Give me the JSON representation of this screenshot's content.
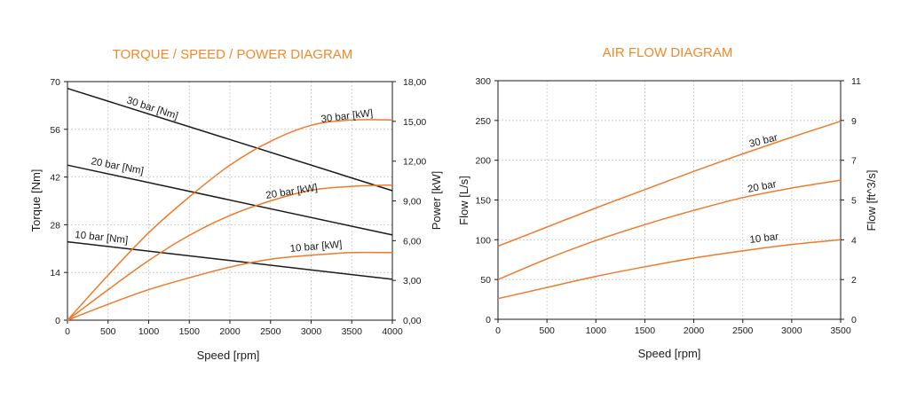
{
  "chart_data": [
    {
      "type": "line",
      "title": "TORQUE / SPEED / POWER DIAGRAM",
      "xlabel": "Speed [rpm]",
      "ylabel": "Torque [Nm]",
      "y2label": "Power [kW]",
      "xlim": [
        0,
        4000
      ],
      "ylim": [
        0,
        70
      ],
      "y2lim": [
        0,
        18
      ],
      "xticks": [
        "0",
        "500",
        "1000",
        "1500",
        "2000",
        "2500",
        "3000",
        "3500",
        "4000"
      ],
      "yticks": [
        "0",
        "14",
        "28",
        "42",
        "56",
        "70"
      ],
      "y2ticks": [
        "0,00",
        "3,00",
        "6,00",
        "9,00",
        "12,00",
        "15,00",
        "18,00"
      ],
      "grid": true,
      "series": [
        {
          "name": "30 bar [Nm]",
          "axis": "left",
          "color": "#1a1a1a",
          "x": [
            0,
            4000
          ],
          "y": [
            68,
            38
          ]
        },
        {
          "name": "20 bar [Nm]",
          "axis": "left",
          "color": "#1a1a1a",
          "x": [
            0,
            4000
          ],
          "y": [
            45.5,
            25
          ]
        },
        {
          "name": "10 bar [Nm]",
          "axis": "left",
          "color": "#1a1a1a",
          "x": [
            0,
            4000
          ],
          "y": [
            23,
            12
          ]
        },
        {
          "name": "30 bar [kW]",
          "axis": "right",
          "color": "#f07a2a",
          "x": [
            0,
            500,
            1000,
            1500,
            2000,
            2500,
            3000,
            3500,
            4000
          ],
          "y": [
            0,
            3.4,
            6.6,
            9.3,
            11.7,
            13.5,
            14.7,
            15.1,
            15.1
          ]
        },
        {
          "name": "20 bar [kW]",
          "axis": "right",
          "color": "#f07a2a",
          "x": [
            0,
            500,
            1000,
            1500,
            2000,
            2500,
            3000,
            3500,
            4000
          ],
          "y": [
            0,
            2.3,
            4.5,
            6.4,
            7.9,
            9.0,
            9.8,
            10.1,
            10.2
          ]
        },
        {
          "name": "10 bar [kW]",
          "axis": "right",
          "color": "#f07a2a",
          "x": [
            0,
            500,
            1000,
            1500,
            2000,
            2500,
            3000,
            3500,
            4000
          ],
          "y": [
            0,
            1.2,
            2.3,
            3.2,
            4.0,
            4.6,
            4.9,
            5.1,
            5.1
          ]
        }
      ]
    },
    {
      "type": "line",
      "title": "AIR FLOW DIAGRAM",
      "xlabel": "Speed [rpm]",
      "ylabel": "Flow [L/s]",
      "y2label": "Flow [ft^3/s]",
      "xlim": [
        0,
        3500
      ],
      "ylim": [
        0,
        300
      ],
      "y2lim": [
        0,
        11
      ],
      "xticks": [
        "0",
        "500",
        "1000",
        "1500",
        "2000",
        "2500",
        "3000",
        "3500"
      ],
      "yticks": [
        "0",
        "50",
        "100",
        "150",
        "200",
        "250",
        "300"
      ],
      "y2ticks": [
        "0",
        "2",
        "4",
        "5",
        "7",
        "9",
        "11"
      ],
      "grid": true,
      "series": [
        {
          "name": "30 bar",
          "axis": "left",
          "color": "#f07a2a",
          "x": [
            0,
            500,
            1000,
            1500,
            2000,
            2500,
            3000,
            3500
          ],
          "y": [
            92,
            116,
            140,
            163,
            186,
            208,
            229,
            249
          ]
        },
        {
          "name": "20 bar",
          "axis": "left",
          "color": "#f07a2a",
          "x": [
            0,
            500,
            1000,
            1500,
            2000,
            2500,
            3000,
            3500
          ],
          "y": [
            50,
            76,
            99,
            119,
            137,
            153,
            165,
            175
          ]
        },
        {
          "name": "10 bar",
          "axis": "left",
          "color": "#f07a2a",
          "x": [
            0,
            500,
            1000,
            1500,
            2000,
            2500,
            3000,
            3500
          ],
          "y": [
            26,
            40,
            54,
            66,
            77,
            86,
            94,
            100
          ]
        }
      ]
    }
  ]
}
